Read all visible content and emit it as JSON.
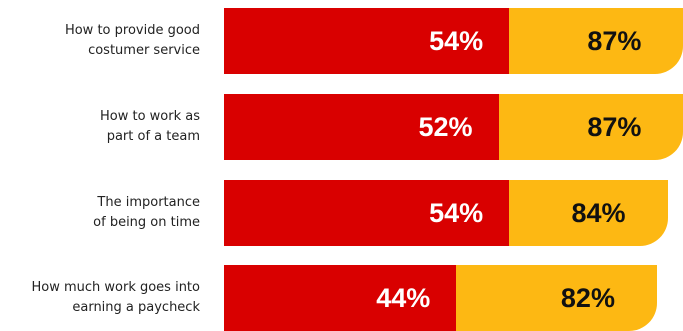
{
  "chart_data": {
    "type": "bar",
    "orientation": "horizontal",
    "stacked": true,
    "categories": [
      "How to provide good costumer service",
      "How to work as part of a team",
      "The importance of being on time",
      "How much work goes into earning a paycheck"
    ],
    "category_lines": [
      [
        "How to provide good",
        "costumer service"
      ],
      [
        "How to work as",
        "part of a team"
      ],
      [
        "The importance",
        "of being on time"
      ],
      [
        "How much work goes into",
        "earning a paycheck"
      ]
    ],
    "series": [
      {
        "values": [
          54,
          52,
          54,
          44
        ],
        "color": "#d90000",
        "label_color": "#ffffff"
      },
      {
        "values": [
          87,
          87,
          84,
          82
        ],
        "color": "#fdb813",
        "label_color": "#111111"
      }
    ],
    "value_labels": [
      [
        "54%",
        "52%",
        "54%",
        "44%"
      ],
      [
        "87%",
        "87%",
        "84%",
        "82%"
      ]
    ],
    "title": "",
    "xlabel": "",
    "ylabel": "",
    "legend": "none",
    "grid": false
  }
}
